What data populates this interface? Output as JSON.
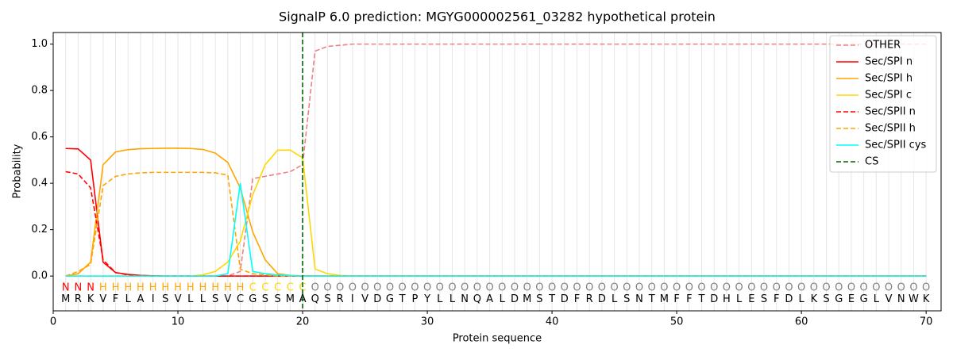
{
  "chart_data": {
    "type": "line",
    "title": "SignalP 6.0 prediction: MGYG000002561_03282 hypothetical protein",
    "xlabel": "Protein sequence",
    "ylabel": "Probability",
    "xlim": [
      0,
      71.2
    ],
    "ylim": [
      -0.15,
      1.05
    ],
    "xticks": [
      0,
      10,
      20,
      30,
      40,
      50,
      60,
      70
    ],
    "yticks": [
      {
        "value": 0,
        "label": "0.0"
      },
      {
        "value": 0.2,
        "label": "0.2"
      },
      {
        "value": 0.4,
        "label": "0.4"
      },
      {
        "value": 0.6,
        "label": "0.6"
      },
      {
        "value": 0.8,
        "label": "0.8"
      },
      {
        "value": 1.0,
        "label": "1.0"
      }
    ],
    "legend": "upper right",
    "x": [
      1,
      2,
      3,
      4,
      5,
      6,
      7,
      8,
      9,
      10,
      11,
      12,
      13,
      14,
      15,
      16,
      17,
      18,
      19,
      20,
      21,
      22,
      23,
      24,
      25,
      26,
      27,
      28,
      29,
      30,
      31,
      32,
      33,
      34,
      35,
      36,
      37,
      38,
      39,
      40,
      41,
      42,
      43,
      44,
      45,
      46,
      47,
      48,
      49,
      50,
      51,
      52,
      53,
      54,
      55,
      56,
      57,
      58,
      59,
      60,
      61,
      62,
      63,
      64,
      65,
      66,
      67,
      68,
      69,
      70
    ],
    "residues": [
      "M",
      "R",
      "K",
      "V",
      "F",
      "L",
      "A",
      "I",
      "S",
      "V",
      "L",
      "L",
      "S",
      "V",
      "C",
      "G",
      "S",
      "S",
      "M",
      "A",
      "Q",
      "S",
      "R",
      "I",
      "V",
      "D",
      "G",
      "T",
      "P",
      "Y",
      "L",
      "L",
      "N",
      "Q",
      "A",
      "L",
      "D",
      "M",
      "S",
      "T",
      "D",
      "F",
      "R",
      "D",
      "L",
      "S",
      "N",
      "T",
      "M",
      "F",
      "F",
      "T",
      "D",
      "H",
      "L",
      "E",
      "S",
      "F",
      "D",
      "L",
      "K",
      "S",
      "G",
      "E",
      "G",
      "L",
      "V",
      "N",
      "W",
      "K"
    ],
    "region_labels": [
      "N",
      "N",
      "N",
      "H",
      "H",
      "H",
      "H",
      "H",
      "H",
      "H",
      "H",
      "H",
      "H",
      "H",
      "H",
      "C",
      "C",
      "C",
      "C",
      "C",
      "O",
      "O",
      "O",
      "O",
      "O",
      "O",
      "O",
      "O",
      "O",
      "O",
      "O",
      "O",
      "O",
      "O",
      "O",
      "O",
      "O",
      "O",
      "O",
      "O",
      "O",
      "O",
      "O",
      "O",
      "O",
      "O",
      "O",
      "O",
      "O",
      "O",
      "O",
      "O",
      "O",
      "O",
      "O",
      "O",
      "O",
      "O",
      "O",
      "O",
      "O",
      "O",
      "O",
      "O",
      "O",
      "O",
      "O",
      "O",
      "O",
      "O"
    ],
    "region_colors": {
      "N": "#ff0000",
      "H": "#ffa500",
      "C": "#ffd700",
      "O": "#808080"
    },
    "series": [
      {
        "name": "OTHER",
        "color": "#f08080",
        "dashed": true,
        "values": [
          0,
          0,
          0,
          0,
          0,
          0,
          0,
          0,
          0,
          0,
          0,
          0,
          0,
          0,
          0.02,
          0.42,
          0.43,
          0.44,
          0.45,
          0.48,
          0.97,
          0.99,
          0.995,
          1,
          1,
          1,
          1,
          1,
          1,
          1,
          1,
          1,
          1,
          1,
          1,
          1,
          1,
          1,
          1,
          1,
          1,
          1,
          1,
          1,
          1,
          1,
          1,
          1,
          1,
          1,
          1,
          1,
          1,
          1,
          1,
          1,
          1,
          1,
          1,
          1,
          1,
          1,
          1,
          1,
          1,
          1,
          1,
          1,
          1,
          1
        ]
      },
      {
        "name": "Sec/SPI n",
        "color": "#ff0000",
        "dashed": false,
        "values": [
          0.55,
          0.548,
          0.5,
          0.06,
          0.015,
          0.007,
          0.003,
          0.001,
          0,
          0,
          0,
          0,
          0,
          0,
          0,
          0,
          0,
          0,
          0,
          0,
          0,
          0,
          0,
          0,
          0,
          0,
          0,
          0,
          0,
          0,
          0,
          0,
          0,
          0,
          0,
          0,
          0,
          0,
          0,
          0,
          0,
          0,
          0,
          0,
          0,
          0,
          0,
          0,
          0,
          0,
          0,
          0,
          0,
          0,
          0,
          0,
          0,
          0,
          0,
          0,
          0,
          0,
          0,
          0,
          0,
          0,
          0,
          0,
          0,
          0
        ]
      },
      {
        "name": "Sec/SPI h",
        "color": "#ffa500",
        "dashed": false,
        "values": [
          0,
          0.01,
          0.06,
          0.48,
          0.535,
          0.545,
          0.549,
          0.55,
          0.551,
          0.551,
          0.55,
          0.546,
          0.53,
          0.49,
          0.38,
          0.19,
          0.07,
          0.01,
          0.003,
          0.001,
          0,
          0,
          0,
          0,
          0,
          0,
          0,
          0,
          0,
          0,
          0,
          0,
          0,
          0,
          0,
          0,
          0,
          0,
          0,
          0,
          0,
          0,
          0,
          0,
          0,
          0,
          0,
          0,
          0,
          0,
          0,
          0,
          0,
          0,
          0,
          0,
          0,
          0,
          0,
          0,
          0,
          0,
          0,
          0,
          0,
          0,
          0,
          0,
          0,
          0
        ]
      },
      {
        "name": "Sec/SPI c",
        "color": "#ffd700",
        "dashed": false,
        "values": [
          0,
          0,
          0,
          0,
          0,
          0,
          0,
          0,
          0,
          0,
          0,
          0.005,
          0.02,
          0.06,
          0.15,
          0.35,
          0.48,
          0.543,
          0.543,
          0.51,
          0.03,
          0.01,
          0.003,
          0,
          0,
          0,
          0,
          0,
          0,
          0,
          0,
          0,
          0,
          0,
          0,
          0,
          0,
          0,
          0,
          0,
          0,
          0,
          0,
          0,
          0,
          0,
          0,
          0,
          0,
          0,
          0,
          0,
          0,
          0,
          0,
          0,
          0,
          0,
          0,
          0,
          0,
          0,
          0,
          0,
          0,
          0,
          0,
          0,
          0,
          0
        ]
      },
      {
        "name": "Sec/SPII n",
        "color": "#ff0000",
        "dashed": true,
        "values": [
          0.45,
          0.44,
          0.38,
          0.07,
          0.015,
          0.005,
          0.002,
          0,
          0,
          0,
          0,
          0,
          0,
          0,
          0,
          0,
          0,
          0,
          0,
          0,
          0,
          0,
          0,
          0,
          0,
          0,
          0,
          0,
          0,
          0,
          0,
          0,
          0,
          0,
          0,
          0,
          0,
          0,
          0,
          0,
          0,
          0,
          0,
          0,
          0,
          0,
          0,
          0,
          0,
          0,
          0,
          0,
          0,
          0,
          0,
          0,
          0,
          0,
          0,
          0,
          0,
          0,
          0,
          0,
          0,
          0,
          0,
          0,
          0,
          0
        ]
      },
      {
        "name": "Sec/SPII h",
        "color": "#ffa500",
        "dashed": true,
        "values": [
          0,
          0.02,
          0.05,
          0.39,
          0.43,
          0.44,
          0.445,
          0.447,
          0.447,
          0.447,
          0.447,
          0.447,
          0.445,
          0.435,
          0.03,
          0.01,
          0.005,
          0,
          0,
          0,
          0,
          0,
          0,
          0,
          0,
          0,
          0,
          0,
          0,
          0,
          0,
          0,
          0,
          0,
          0,
          0,
          0,
          0,
          0,
          0,
          0,
          0,
          0,
          0,
          0,
          0,
          0,
          0,
          0,
          0,
          0,
          0,
          0,
          0,
          0,
          0,
          0,
          0,
          0,
          0,
          0,
          0,
          0,
          0,
          0,
          0,
          0,
          0,
          0,
          0
        ]
      },
      {
        "name": "Sec/SPII cys",
        "color": "#00ffff",
        "dashed": false,
        "values": [
          0,
          0,
          0,
          0,
          0,
          0,
          0,
          0,
          0,
          0,
          0,
          0,
          0,
          0.01,
          0.4,
          0.02,
          0.01,
          0.005,
          0.002,
          0,
          0,
          0,
          0,
          0,
          0,
          0,
          0,
          0,
          0,
          0,
          0,
          0,
          0,
          0,
          0,
          0,
          0,
          0,
          0,
          0,
          0,
          0,
          0,
          0,
          0,
          0,
          0,
          0,
          0,
          0,
          0,
          0,
          0,
          0,
          0,
          0,
          0,
          0,
          0,
          0,
          0,
          0,
          0,
          0,
          0,
          0,
          0,
          0,
          0,
          0
        ]
      }
    ],
    "cs_position": 20,
    "cs_label": "CS",
    "cs_color": "#006400"
  }
}
